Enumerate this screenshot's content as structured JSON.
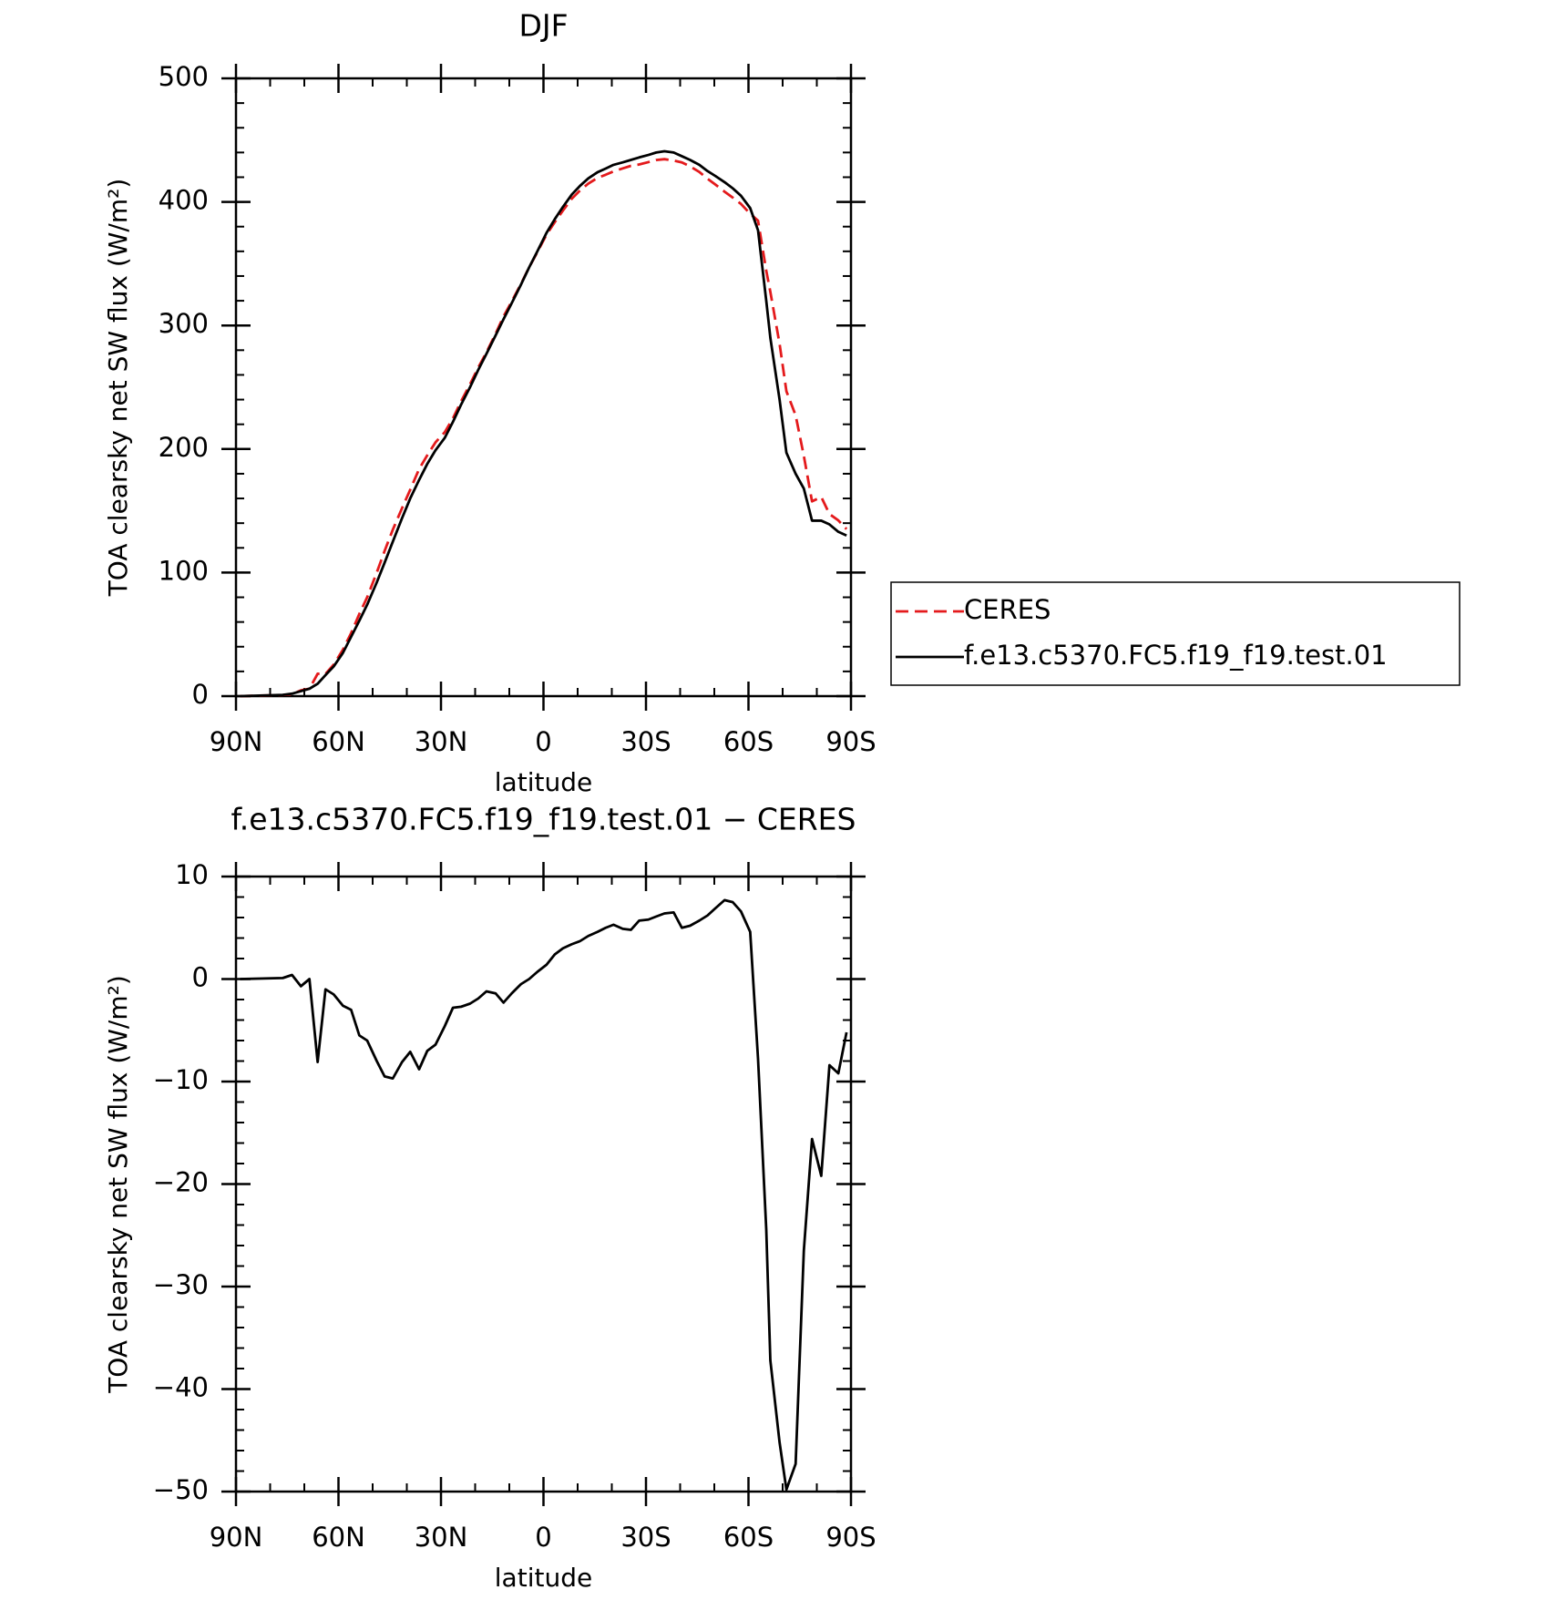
{
  "chart_data": [
    {
      "type": "line",
      "title": "DJF",
      "xlabel": "latitude",
      "ylabel": "TOA clearsky net SW flux (W/m²)",
      "x": [
        88.8,
        76.3,
        73.6,
        71,
        68.5,
        66.1,
        63.8,
        61.4,
        58.7,
        56.3,
        53.9,
        51.6,
        48.8,
        46.5,
        44.1,
        41.4,
        39,
        36.4,
        34,
        31.6,
        28.9,
        26.5,
        24.1,
        21.5,
        19.1,
        16.7,
        14,
        11.7,
        9.3,
        6.6,
        4.2,
        1.8,
        -0.9,
        -3.3,
        -5.7,
        -8.3,
        -10.7,
        -13.1,
        -15.8,
        -18.2,
        -20.5,
        -23.2,
        -25.6,
        -28,
        -30.7,
        -33,
        -35.4,
        -38.1,
        -40.5,
        -42.9,
        -45.6,
        -48,
        -50.3,
        -53,
        -55.4,
        -57.8,
        -60.5,
        -62.8,
        -65.2,
        -66.4,
        -69.1,
        -71.1,
        -73.8,
        -76.2,
        -78.6,
        -81.3,
        -83.7,
        -86.3,
        -88.7
      ],
      "series": [
        {
          "name": "CERES",
          "color": "#e41a1c",
          "dash": true,
          "values": [
            0,
            0.9,
            1.6,
            4.7,
            6,
            18.1,
            18,
            25.5,
            37.6,
            51,
            66.5,
            80,
            100,
            117.5,
            134.7,
            152.1,
            167.1,
            183.8,
            195,
            205.4,
            213.6,
            224.8,
            238.7,
            252.4,
            265.9,
            278.2,
            293.4,
            307.3,
            319.4,
            333.5,
            347,
            359.3,
            373.6,
            383.6,
            393,
            402.6,
            409.3,
            414.8,
            419.4,
            422,
            424.7,
            427.1,
            429.2,
            430.3,
            432.2,
            433.9,
            434.6,
            433.5,
            432,
            428.8,
            424.3,
            418.8,
            414.1,
            408.3,
            403.5,
            398.4,
            390.4,
            384.8,
            344.4,
            327.2,
            285.2,
            246.8,
            227.3,
            194.5,
            157.6,
            161.2,
            147.4,
            142.2,
            135.2
          ]
        },
        {
          "name": "f.e13.c5370.FC5.f19_f19.test.01",
          "color": "#000000",
          "dash": false,
          "values": [
            0,
            1,
            2,
            4,
            6,
            10,
            17,
            24,
            35,
            48,
            61,
            74,
            92,
            108,
            125,
            144,
            160,
            175,
            188,
            199,
            209,
            222,
            236,
            250,
            264,
            277,
            292,
            305,
            318,
            333,
            347,
            360,
            375,
            386,
            396,
            406,
            413,
            419,
            424,
            427,
            430,
            432,
            434,
            436,
            438,
            440,
            441,
            440,
            437,
            434,
            430,
            425,
            421,
            416,
            411,
            405,
            395,
            377,
            320,
            290,
            240,
            197,
            180,
            168,
            142,
            142,
            139,
            133,
            130
          ]
        }
      ],
      "xlim": [
        90,
        -90
      ],
      "xticks": [
        {
          "value": 90,
          "label": "90N"
        },
        {
          "value": 60,
          "label": "60N"
        },
        {
          "value": 30,
          "label": "30N"
        },
        0,
        {
          "value": -30,
          "label": "30S"
        },
        {
          "value": -60,
          "label": "60S"
        },
        {
          "value": -90,
          "label": "90S"
        }
      ],
      "ylim": [
        0,
        500
      ],
      "yticks": [
        0,
        100,
        200,
        300,
        400,
        500
      ],
      "legend": "right"
    },
    {
      "type": "line",
      "title": "f.e13.c5370.FC5.f19_f19.test.01 − CERES",
      "xlabel": "latitude",
      "ylabel": "TOA clearsky net SW flux (W/m²)",
      "x": [
        88.8,
        76.3,
        73.6,
        71,
        68.5,
        66.1,
        63.8,
        61.4,
        58.7,
        56.3,
        53.9,
        51.6,
        48.8,
        46.5,
        44.1,
        41.4,
        39,
        36.4,
        34,
        31.6,
        28.9,
        26.5,
        24.1,
        21.5,
        19.1,
        16.7,
        14,
        11.7,
        9.3,
        6.6,
        4.2,
        1.8,
        -0.9,
        -3.3,
        -5.7,
        -8.3,
        -10.7,
        -13.1,
        -15.8,
        -18.2,
        -20.5,
        -23.2,
        -25.6,
        -28,
        -30.7,
        -33,
        -35.4,
        -38.1,
        -40.5,
        -42.9,
        -45.6,
        -48,
        -50.3,
        -53,
        -55.4,
        -57.8,
        -60.5,
        -62.8,
        -65.2,
        -66.4,
        -69.1,
        -71.1,
        -73.8,
        -76.2,
        -78.6,
        -81.3,
        -83.7,
        -86.3,
        -88.7
      ],
      "values": [
        0,
        0.1,
        0.4,
        -0.7,
        0,
        -8.1,
        -1,
        -1.5,
        -2.6,
        -3,
        -5.5,
        -6,
        -8,
        -9.5,
        -9.7,
        -8.1,
        -7.1,
        -8.8,
        -7,
        -6.4,
        -4.6,
        -2.8,
        -2.7,
        -2.4,
        -1.9,
        -1.2,
        -1.4,
        -2.3,
        -1.4,
        -0.5,
        0,
        0.7,
        1.4,
        2.4,
        3,
        3.4,
        3.7,
        4.2,
        4.6,
        5,
        5.3,
        4.9,
        4.8,
        5.7,
        5.8,
        6.1,
        6.4,
        6.5,
        5,
        5.2,
        5.7,
        6.2,
        6.9,
        7.7,
        7.5,
        6.6,
        4.6,
        -7.8,
        -24.4,
        -37.2,
        -45.2,
        -49.8,
        -47.3,
        -26.5,
        -15.6,
        -19.2,
        -8.4,
        -9.2,
        -5.2
      ],
      "color": "#000000",
      "xlim": [
        90,
        -90
      ],
      "xticks": [
        {
          "value": 90,
          "label": "90N"
        },
        {
          "value": 60,
          "label": "60N"
        },
        {
          "value": 30,
          "label": "30N"
        },
        0,
        {
          "value": -30,
          "label": "30S"
        },
        {
          "value": -60,
          "label": "60S"
        },
        {
          "value": -90,
          "label": "90S"
        }
      ],
      "ylim": [
        -50,
        10
      ],
      "yticks": [
        {
          "value": -50,
          "label": "−50"
        },
        {
          "value": -40,
          "label": "−40"
        },
        {
          "value": -30,
          "label": "−30"
        },
        {
          "value": -20,
          "label": "−20"
        },
        {
          "value": -10,
          "label": "−10"
        },
        0,
        10
      ]
    }
  ]
}
